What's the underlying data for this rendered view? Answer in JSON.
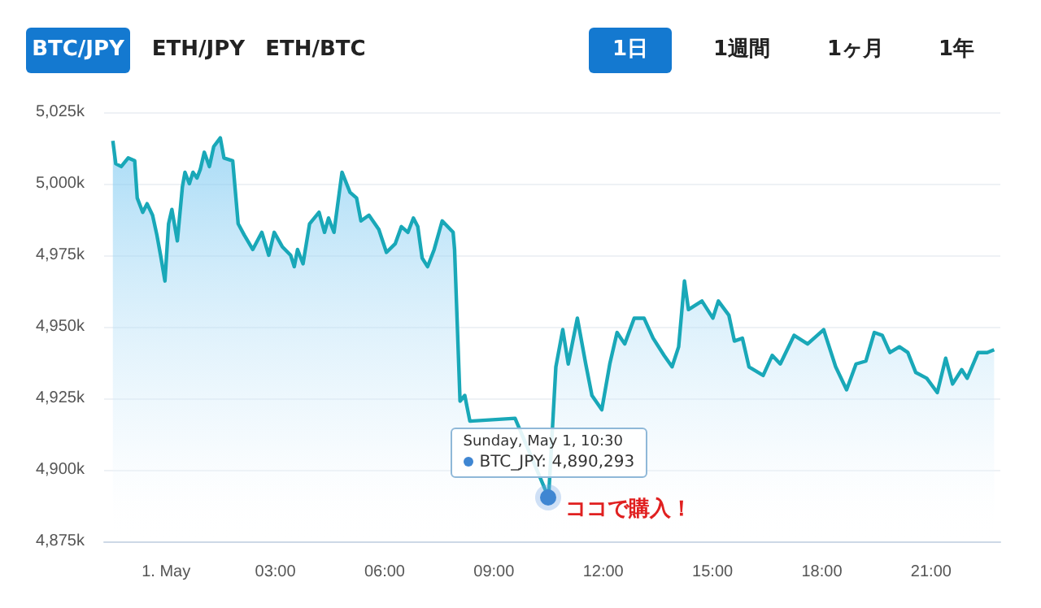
{
  "chart_data": {
    "type": "area",
    "color": "#19a8b8",
    "grid": "y",
    "marker": "none",
    "x": [
      -1.46,
      -1.38,
      -1.23,
      -1.04,
      -0.86,
      -0.79,
      -0.64,
      -0.52,
      -0.37,
      -0.25,
      -0.15,
      -0.03,
      0.07,
      0.16,
      0.31,
      0.45,
      0.52,
      0.64,
      0.74,
      0.85,
      0.94,
      1.05,
      1.19,
      1.31,
      1.49,
      1.59,
      1.83,
      1.98,
      2.15,
      2.38,
      2.63,
      2.82,
      2.97,
      3.19,
      3.42,
      3.52,
      3.61,
      3.76,
      3.94,
      4.2,
      4.35,
      4.46,
      4.61,
      4.83,
      5.05,
      5.23,
      5.35,
      5.57,
      5.84,
      6.05,
      6.29,
      6.46,
      6.64,
      6.79,
      6.91,
      7.03,
      7.18,
      7.36,
      7.58,
      7.73,
      7.88,
      7.92,
      8.07,
      8.13,
      8.2,
      8.34,
      8.7,
      9.0,
      9.3,
      9.58,
      9.8,
      10.18,
      10.5,
      10.7,
      10.89,
      11.04,
      11.29,
      11.52,
      11.69,
      11.96,
      12.18,
      12.38,
      12.59,
      12.85,
      13.12,
      13.37,
      13.67,
      13.89,
      14.07,
      14.23,
      14.34,
      14.71,
      15.01,
      15.16,
      15.45,
      15.6,
      15.82,
      16.0,
      16.39,
      16.64,
      16.86,
      17.24,
      17.61,
      18.05,
      18.38,
      18.68,
      18.94,
      19.21,
      19.44,
      19.66,
      19.87,
      20.13,
      20.36,
      20.58,
      20.88,
      21.17,
      21.4,
      21.59,
      21.84,
      21.99,
      22.29,
      22.54,
      22.73
    ],
    "values": [
      5015000,
      5007000,
      5006000,
      5009000,
      5008000,
      4995000,
      4990000,
      4993000,
      4989000,
      4982000,
      4975000,
      4966000,
      4986000,
      4991000,
      4980000,
      4999000,
      5004000,
      5000000,
      5004000,
      5002000,
      5005000,
      5011000,
      5006000,
      5013000,
      5016000,
      5009000,
      5008000,
      4986000,
      4982000,
      4977000,
      4983000,
      4975000,
      4983000,
      4978000,
      4975000,
      4971000,
      4977000,
      4972000,
      4986000,
      4990000,
      4983000,
      4988000,
      4983000,
      5004000,
      4997000,
      4995000,
      4987000,
      4989000,
      4984000,
      4976000,
      4979000,
      4985000,
      4983000,
      4988000,
      4985000,
      4974000,
      4971000,
      4977000,
      4987000,
      4985000,
      4983000,
      4977000,
      4924000,
      null,
      4926000,
      4917000,
      null,
      null,
      null,
      4918000,
      null,
      null,
      4890293,
      4936000,
      4949000,
      4937000,
      4953000,
      4937000,
      4926000,
      4921000,
      4937000,
      4948000,
      4944000,
      4953000,
      4953000,
      4946000,
      4940000,
      4936000,
      4943000,
      4966000,
      4956000,
      4959000,
      4953000,
      4959000,
      4954000,
      4945000,
      4946000,
      4936000,
      4933000,
      4940000,
      4937000,
      4947000,
      4944000,
      4949000,
      4936000,
      4928000,
      4937000,
      4938000,
      4948000,
      4947000,
      4941000,
      4943000,
      4941000,
      4934000,
      4932000,
      4927000,
      4939000,
      4930000,
      4935000,
      4932000,
      4941000,
      4941000,
      4942000
    ],
    "xlim": [
      -1.7,
      22.9
    ],
    "xticks": [
      {
        "value": 0,
        "label": "1. May"
      },
      {
        "value": 3,
        "label": "03:00"
      },
      {
        "value": 6,
        "label": "06:00"
      },
      {
        "value": 9,
        "label": "09:00"
      },
      {
        "value": 12,
        "label": "12:00"
      },
      {
        "value": 15,
        "label": "15:00"
      },
      {
        "value": 18,
        "label": "18:00"
      },
      {
        "value": 21,
        "label": "21:00"
      }
    ],
    "ylim": [
      4875000,
      5025000
    ],
    "yticks": [
      {
        "value": 4875000,
        "label": "4,875k"
      },
      {
        "value": 4900000,
        "label": "4,900k"
      },
      {
        "value": 4925000,
        "label": "4,925k"
      },
      {
        "value": 4950000,
        "label": "4,950k"
      },
      {
        "value": 4975000,
        "label": "4,975k"
      },
      {
        "value": 5000000,
        "label": "5,000k"
      },
      {
        "value": 5025000,
        "label": "5,025k"
      }
    ],
    "annotations": [
      "BTC/JPY",
      "ETH/JPY",
      "ETH/BTC",
      "1日",
      "1週間",
      "1ヶ月",
      "1年",
      "Sunday, May 1, 10:30",
      "BTC_JPY: 4,890,293",
      {
        "text": "ココで購入！",
        "x": 10.5,
        "y": 4890293
      }
    ]
  }
}
